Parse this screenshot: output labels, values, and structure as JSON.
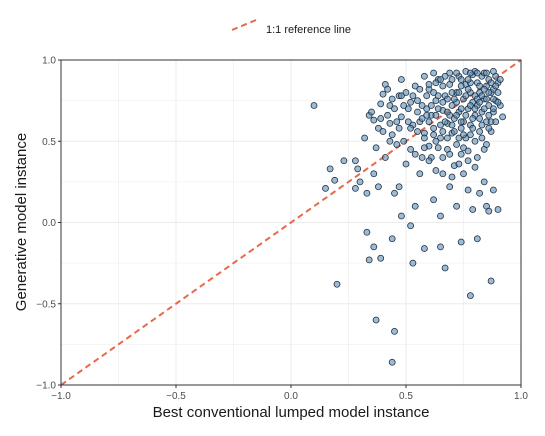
{
  "chart_data": {
    "type": "scatter",
    "xlabel": "Best conventional lumped model instance",
    "ylabel": "Generative model instance",
    "xlim": [
      -1.0,
      1.0
    ],
    "ylim": [
      -1.0,
      1.0
    ],
    "x_ticks": [
      -1.0,
      -0.5,
      0.0,
      0.5,
      1.0
    ],
    "y_ticks": [
      -1.0,
      -0.5,
      0.0,
      0.5,
      1.0
    ],
    "x_tick_labels": [
      "−1.0",
      "−0.5",
      "0.0",
      "0.5",
      "1.0"
    ],
    "y_tick_labels": [
      "−1.0",
      "−0.5",
      "0.0",
      "0.5",
      "1.0"
    ],
    "grid": true,
    "legend_position": "top-center",
    "reference_line": {
      "label": "1:1 reference line",
      "x": [
        -1.0,
        1.0
      ],
      "y": [
        -1.0,
        1.0
      ],
      "color": "#e8694a",
      "style": "dashed"
    },
    "point_color": "#5b8db8",
    "point_edge_color": "#1f2f3f",
    "series": [
      {
        "points": [
          [
            0.1,
            0.72
          ],
          [
            0.17,
            0.33
          ],
          [
            0.15,
            0.21
          ],
          [
            0.19,
            0.26
          ],
          [
            0.23,
            0.38
          ],
          [
            0.28,
            0.38
          ],
          [
            0.29,
            0.33
          ],
          [
            0.3,
            0.25
          ],
          [
            0.32,
            0.52
          ],
          [
            0.34,
            0.66
          ],
          [
            0.35,
            0.68
          ],
          [
            0.36,
            0.63
          ],
          [
            0.38,
            0.58
          ],
          [
            0.38,
            0.22
          ],
          [
            0.39,
            0.73
          ],
          [
            0.4,
            0.79
          ],
          [
            0.41,
            0.85
          ],
          [
            0.43,
            0.72
          ],
          [
            0.43,
            0.61
          ],
          [
            0.44,
            0.54
          ],
          [
            0.46,
            0.48
          ],
          [
            0.47,
            0.78
          ],
          [
            0.48,
            0.88
          ],
          [
            0.48,
            0.65
          ],
          [
            0.49,
            0.5
          ],
          [
            0.5,
            0.8
          ],
          [
            0.51,
            0.7
          ],
          [
            0.52,
            0.45
          ],
          [
            0.53,
            0.6
          ],
          [
            0.54,
            0.84
          ],
          [
            0.55,
            0.75
          ],
          [
            0.56,
            0.62
          ],
          [
            0.57,
            0.4
          ],
          [
            0.58,
            0.55
          ],
          [
            0.59,
            0.7
          ],
          [
            0.6,
            0.82
          ],
          [
            0.6,
            0.47
          ],
          [
            0.61,
            0.66
          ],
          [
            0.62,
            0.58
          ],
          [
            0.63,
            0.75
          ],
          [
            0.63,
            0.32
          ],
          [
            0.64,
            0.88
          ],
          [
            0.65,
            0.52
          ],
          [
            0.66,
            0.4
          ],
          [
            0.66,
            0.69
          ],
          [
            0.67,
            0.78
          ],
          [
            0.68,
            0.61
          ],
          [
            0.68,
            0.45
          ],
          [
            0.69,
            0.85
          ],
          [
            0.7,
            0.72
          ],
          [
            0.7,
            0.55
          ],
          [
            0.71,
            0.64
          ],
          [
            0.71,
            0.35
          ],
          [
            0.72,
            0.8
          ],
          [
            0.72,
            0.48
          ],
          [
            0.73,
            0.9
          ],
          [
            0.73,
            0.68
          ],
          [
            0.74,
            0.58
          ],
          [
            0.74,
            0.42
          ],
          [
            0.75,
            0.76
          ],
          [
            0.75,
            0.62
          ],
          [
            0.76,
            0.85
          ],
          [
            0.76,
            0.52
          ],
          [
            0.77,
            0.7
          ],
          [
            0.77,
            0.38
          ],
          [
            0.78,
            0.8
          ],
          [
            0.78,
            0.6
          ],
          [
            0.79,
            0.91
          ],
          [
            0.79,
            0.74
          ],
          [
            0.8,
            0.66
          ],
          [
            0.8,
            0.5
          ],
          [
            0.81,
            0.86
          ],
          [
            0.81,
            0.72
          ],
          [
            0.82,
            0.8
          ],
          [
            0.82,
            0.56
          ],
          [
            0.83,
            0.9
          ],
          [
            0.83,
            0.68
          ],
          [
            0.84,
            0.76
          ],
          [
            0.84,
            0.45
          ],
          [
            0.85,
            0.84
          ],
          [
            0.85,
            0.62
          ],
          [
            0.86,
            0.72
          ],
          [
            0.86,
            0.88
          ],
          [
            0.87,
            0.8
          ],
          [
            0.87,
            0.56
          ],
          [
            0.88,
            0.68
          ],
          [
            0.88,
            0.82
          ],
          [
            0.89,
            0.75
          ],
          [
            0.89,
            0.9
          ],
          [
            0.9,
            0.86
          ],
          [
            0.91,
            0.72
          ],
          [
            0.45,
            0.7
          ],
          [
            0.52,
            0.58
          ],
          [
            0.58,
            0.9
          ],
          [
            0.62,
            0.92
          ],
          [
            0.67,
            0.9
          ],
          [
            0.72,
            0.92
          ],
          [
            0.76,
            0.93
          ],
          [
            0.8,
            0.93
          ],
          [
            0.84,
            0.92
          ],
          [
            0.88,
            0.93
          ],
          [
            0.55,
            0.56
          ],
          [
            0.6,
            0.62
          ],
          [
            0.65,
            0.6
          ],
          [
            0.69,
            0.66
          ],
          [
            0.74,
            0.7
          ],
          [
            0.78,
            0.72
          ],
          [
            0.82,
            0.64
          ],
          [
            0.86,
            0.66
          ],
          [
            0.57,
            0.72
          ],
          [
            0.62,
            0.8
          ],
          [
            0.66,
            0.84
          ],
          [
            0.7,
            0.88
          ],
          [
            0.74,
            0.84
          ],
          [
            0.78,
            0.86
          ],
          [
            0.82,
            0.84
          ],
          [
            0.86,
            0.8
          ],
          [
            0.64,
            0.7
          ],
          [
            0.68,
            0.76
          ],
          [
            0.72,
            0.74
          ],
          [
            0.76,
            0.78
          ],
          [
            0.8,
            0.78
          ],
          [
            0.84,
            0.7
          ],
          [
            0.88,
            0.76
          ],
          [
            0.58,
            0.52
          ],
          [
            0.63,
            0.5
          ],
          [
            0.68,
            0.52
          ],
          [
            0.73,
            0.52
          ],
          [
            0.78,
            0.54
          ],
          [
            0.83,
            0.52
          ],
          [
            0.61,
            0.4
          ],
          [
            0.66,
            0.3
          ],
          [
            0.7,
            0.28
          ],
          [
            0.75,
            0.3
          ],
          [
            0.8,
            0.34
          ],
          [
            0.84,
            0.25
          ],
          [
            0.69,
            0.22
          ],
          [
            0.77,
            0.2
          ],
          [
            0.82,
            0.18
          ],
          [
            0.85,
            0.1
          ],
          [
            0.88,
            0.2
          ],
          [
            0.92,
            0.65
          ],
          [
            0.75,
            0.46
          ],
          [
            0.71,
            0.76
          ],
          [
            0.67,
            0.62
          ],
          [
            0.63,
            0.66
          ],
          [
            0.59,
            0.78
          ],
          [
            0.55,
            0.68
          ],
          [
            0.51,
            0.62
          ],
          [
            0.47,
            0.58
          ],
          [
            0.43,
            0.5
          ],
          [
            0.41,
            0.4
          ],
          [
            0.36,
            0.3
          ],
          [
            0.33,
            0.18
          ],
          [
            0.28,
            0.21
          ],
          [
            0.47,
            0.22
          ],
          [
            0.56,
            0.3
          ],
          [
            0.54,
            0.1
          ],
          [
            0.62,
            0.14
          ],
          [
            0.65,
            0.04
          ],
          [
            0.72,
            0.1
          ],
          [
            0.79,
            0.08
          ],
          [
            0.86,
            0.07
          ],
          [
            0.9,
            0.08
          ],
          [
            0.45,
            0.18
          ],
          [
            0.48,
            0.04
          ],
          [
            0.52,
            -0.02
          ],
          [
            0.44,
            -0.1
          ],
          [
            0.33,
            -0.06
          ],
          [
            0.36,
            -0.15
          ],
          [
            0.39,
            -0.22
          ],
          [
            0.53,
            -0.25
          ],
          [
            0.58,
            -0.16
          ],
          [
            0.65,
            -0.15
          ],
          [
            0.67,
            -0.28
          ],
          [
            0.34,
            -0.23
          ],
          [
            0.2,
            -0.38
          ],
          [
            0.74,
            -0.12
          ],
          [
            0.81,
            -0.1
          ],
          [
            0.87,
            -0.36
          ],
          [
            0.78,
            -0.45
          ],
          [
            0.45,
            -0.67
          ],
          [
            0.37,
            -0.6
          ],
          [
            0.44,
            -0.86
          ],
          [
            0.6,
            0.85
          ],
          [
            0.64,
            0.78
          ],
          [
            0.7,
            0.8
          ],
          [
            0.74,
            0.62
          ],
          [
            0.79,
            0.64
          ],
          [
            0.83,
            0.78
          ],
          [
            0.87,
            0.86
          ],
          [
            0.9,
            0.8
          ],
          [
            0.66,
            0.74
          ],
          [
            0.72,
            0.66
          ],
          [
            0.77,
            0.88
          ],
          [
            0.81,
            0.92
          ],
          [
            0.85,
            0.76
          ],
          [
            0.89,
            0.84
          ],
          [
            0.61,
            0.72
          ],
          [
            0.57,
            0.64
          ],
          [
            0.53,
            0.78
          ],
          [
            0.49,
            0.72
          ],
          [
            0.46,
            0.62
          ],
          [
            0.42,
            0.66
          ],
          [
            0.4,
            0.56
          ],
          [
            0.37,
            0.46
          ],
          [
            0.6,
            0.38
          ],
          [
            0.64,
            0.46
          ],
          [
            0.69,
            0.42
          ],
          [
            0.73,
            0.36
          ],
          [
            0.77,
            0.44
          ],
          [
            0.81,
            0.4
          ],
          [
            0.85,
            0.48
          ],
          [
            0.71,
            0.56
          ],
          [
            0.75,
            0.54
          ],
          [
            0.79,
            0.58
          ],
          [
            0.83,
            0.6
          ],
          [
            0.87,
            0.62
          ],
          [
            0.66,
            0.56
          ],
          [
            0.62,
            0.54
          ],
          [
            0.58,
            0.46
          ],
          [
            0.54,
            0.42
          ],
          [
            0.5,
            0.36
          ],
          [
            0.76,
            0.66
          ],
          [
            0.8,
            0.7
          ],
          [
            0.84,
            0.82
          ],
          [
            0.88,
            0.7
          ],
          [
            0.7,
            0.6
          ],
          [
            0.65,
            0.88
          ],
          [
            0.69,
            0.92
          ],
          [
            0.73,
            0.8
          ],
          [
            0.77,
            0.82
          ],
          [
            0.81,
            0.76
          ],
          [
            0.85,
            0.92
          ],
          [
            0.89,
            0.62
          ],
          [
            0.91,
            0.88
          ],
          [
            0.63,
            0.86
          ],
          [
            0.59,
            0.66
          ],
          [
            0.56,
            0.82
          ],
          [
            0.52,
            0.74
          ],
          [
            0.48,
            0.78
          ],
          [
            0.44,
            0.76
          ],
          [
            0.42,
            0.82
          ],
          [
            0.39,
            0.64
          ],
          [
            0.68,
            0.68
          ],
          [
            0.74,
            0.88
          ],
          [
            0.78,
            0.92
          ],
          [
            0.82,
            0.74
          ],
          [
            0.86,
            0.58
          ],
          [
            0.9,
            0.74
          ]
        ]
      }
    ]
  }
}
